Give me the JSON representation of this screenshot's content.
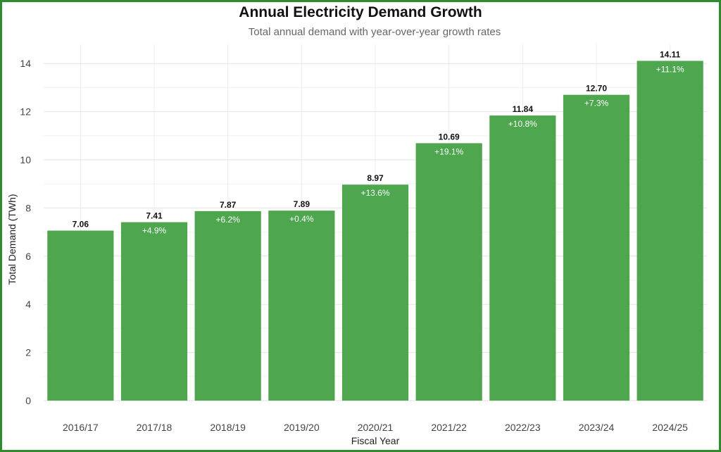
{
  "chart_data": {
    "type": "bar",
    "title": "Annual Electricity Demand Growth",
    "subtitle": "Total annual demand with year-over-year growth rates",
    "xlabel": "Fiscal Year",
    "ylabel": "Total Demand (TWh)",
    "categories": [
      "2016/17",
      "2017/18",
      "2018/19",
      "2019/20",
      "2020/21",
      "2021/22",
      "2022/23",
      "2023/24",
      "2024/25"
    ],
    "values": [
      7.06,
      7.41,
      7.87,
      7.89,
      8.97,
      10.69,
      11.84,
      12.7,
      14.11
    ],
    "value_labels": [
      "7.06",
      "7.41",
      "7.87",
      "7.89",
      "8.97",
      "10.69",
      "11.84",
      "12.70",
      "14.11"
    ],
    "growth_labels": [
      "",
      "+4.9%",
      "+6.2%",
      "+0.4%",
      "+13.6%",
      "+19.1%",
      "+10.8%",
      "+7.3%",
      "+11.1%"
    ],
    "yticks": [
      "0",
      "2",
      "4",
      "6",
      "8",
      "10",
      "12",
      "14"
    ],
    "ylim": [
      0,
      14.8
    ],
    "grid": true,
    "bar_color": "#4ea64e",
    "border_color": "#2e8b2e"
  }
}
